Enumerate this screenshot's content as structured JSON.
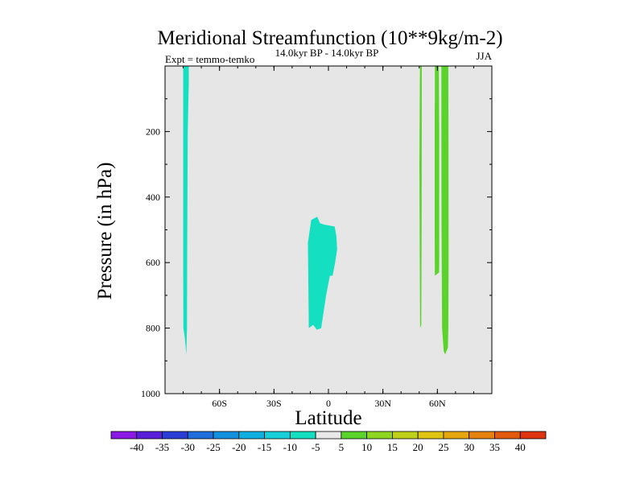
{
  "chart_data": {
    "type": "heatmap",
    "title": "Meridional Streamfunction (10**9kg/m-2)",
    "subtitle": "14.0kyr BP - 14.0kyr BP",
    "left_label": "Expt = temmo-temko",
    "right_label": "JJA",
    "xlabel": "Latitude",
    "ylabel": "Pressure (in hPa)",
    "xlim": [
      -90,
      90
    ],
    "ylim": [
      1000,
      0
    ],
    "x_ticks": [
      {
        "value": -60,
        "label": "60S"
      },
      {
        "value": -30,
        "label": "30S"
      },
      {
        "value": 0,
        "label": "0"
      },
      {
        "value": 30,
        "label": "30N"
      },
      {
        "value": 60,
        "label": "60N"
      }
    ],
    "y_ticks": [
      {
        "value": 200,
        "label": "200"
      },
      {
        "value": 400,
        "label": "400"
      },
      {
        "value": 600,
        "label": "600"
      },
      {
        "value": 800,
        "label": "800"
      },
      {
        "value": 1000,
        "label": "1000"
      }
    ],
    "background_color": "#e6e6e6",
    "colorbar": {
      "levels": [
        -40,
        -35,
        -30,
        -25,
        -20,
        -15,
        -10,
        -5,
        5,
        10,
        15,
        20,
        25,
        30,
        35,
        40
      ],
      "labels": [
        "-40",
        "-35",
        "-30",
        "-25",
        "-20",
        "-15",
        "-10",
        "-5",
        "5",
        "10",
        "15",
        "20",
        "25",
        "30",
        "35",
        "40"
      ],
      "colors": [
        "#8a19e6",
        "#5a1fd8",
        "#2a3ed6",
        "#1f6edc",
        "#1390de",
        "#0fb0e0",
        "#17cfd8",
        "#14dfc0",
        "#e8e8e8",
        "#5ad32a",
        "#8ed51f",
        "#bfd01a",
        "#e0c412",
        "#e5a60e",
        "#e4820d",
        "#e35a0f",
        "#de3410"
      ]
    },
    "regions": [
      {
        "name": "sh-high-lat-negative",
        "value_range": "-10 to -5",
        "color": "#14dfc0",
        "points": [
          [
            -80,
            0
          ],
          [
            -76.9,
            0
          ],
          [
            -76.9,
            50
          ],
          [
            -77.5,
            200
          ],
          [
            -77.8,
            600
          ],
          [
            -77.9,
            800
          ],
          [
            -78.3,
            880
          ],
          [
            -79.1,
            830
          ],
          [
            -79.9,
            800
          ],
          [
            -80.0,
            640
          ],
          [
            -80.0,
            200
          ]
        ]
      },
      {
        "name": "tropical-negative-cell",
        "value_range": "-10 to -5",
        "color": "#14dfc0",
        "points": [
          [
            -6.2,
            460
          ],
          [
            -4.6,
            480
          ],
          [
            -2.4,
            484
          ],
          [
            3.4,
            490
          ],
          [
            4.4,
            520
          ],
          [
            4.8,
            560
          ],
          [
            3.7,
            600
          ],
          [
            2.3,
            640
          ],
          [
            0.8,
            640
          ],
          [
            -1.3,
            700
          ],
          [
            -4.0,
            800
          ],
          [
            -6.4,
            805
          ],
          [
            -8.4,
            790
          ],
          [
            -10.8,
            800
          ],
          [
            -11.0,
            700
          ],
          [
            -11.3,
            540
          ],
          [
            -9.5,
            470
          ]
        ]
      },
      {
        "name": "nh-positive-band-1",
        "value_range": "5 to 10",
        "color": "#5ad32a",
        "points": [
          [
            50.4,
            0
          ],
          [
            51.4,
            0
          ],
          [
            51.4,
            200
          ],
          [
            51.3,
            500
          ],
          [
            51.1,
            790
          ],
          [
            50.5,
            800
          ],
          [
            50.3,
            600
          ],
          [
            50.1,
            300
          ]
        ]
      },
      {
        "name": "nh-positive-band-2",
        "value_range": "5 to 10",
        "color": "#5ad32a",
        "points": [
          [
            58.6,
            0
          ],
          [
            60.8,
            0
          ],
          [
            61.0,
            200
          ],
          [
            61.0,
            600
          ],
          [
            60.9,
            630
          ],
          [
            58.6,
            640
          ],
          [
            58.5,
            500
          ],
          [
            58.5,
            300
          ],
          [
            58.5,
            150
          ],
          [
            58.6,
            100
          ]
        ]
      },
      {
        "name": "nh-positive-band-3",
        "value_range": "5 to 10",
        "color": "#5ad32a",
        "points": [
          [
            62.2,
            0
          ],
          [
            66.0,
            0
          ],
          [
            66.1,
            200
          ],
          [
            66.2,
            600
          ],
          [
            66.0,
            800
          ],
          [
            65.8,
            860
          ],
          [
            64.3,
            880
          ],
          [
            63.5,
            870
          ],
          [
            62.6,
            800
          ],
          [
            62.3,
            500
          ],
          [
            62.2,
            200
          ]
        ]
      }
    ]
  }
}
